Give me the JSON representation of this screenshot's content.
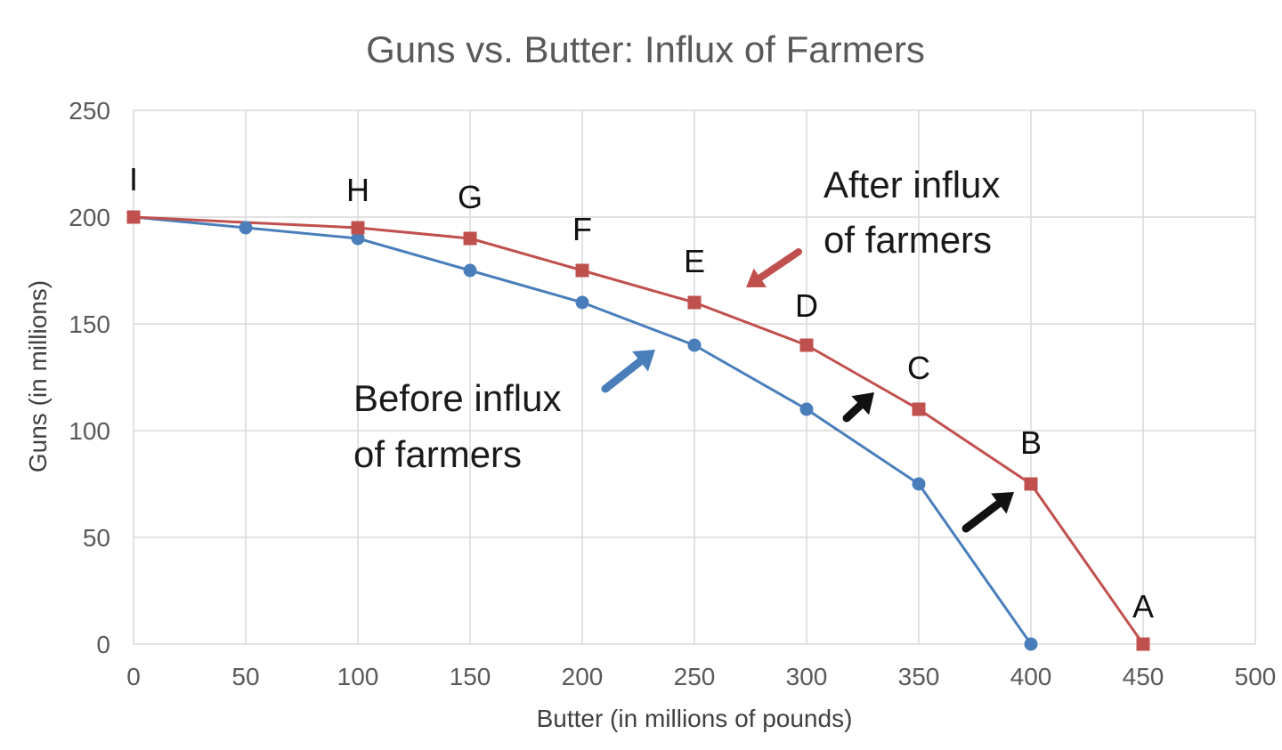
{
  "chart_data": {
    "type": "line",
    "title": "Guns vs. Butter: Influx of Farmers",
    "xlabel": "Butter (in millions of pounds)",
    "ylabel": "Guns (in millions)",
    "xlim": [
      0,
      500
    ],
    "ylim": [
      0,
      250
    ],
    "x_ticks": [
      0,
      50,
      100,
      150,
      200,
      250,
      300,
      350,
      400,
      450,
      500
    ],
    "y_ticks": [
      0,
      50,
      100,
      150,
      200,
      250
    ],
    "grid": true,
    "legend": "none",
    "series": [
      {
        "color": "#4a7ebb",
        "marker": "circle",
        "points": [
          [
            0,
            200
          ],
          [
            50,
            195
          ],
          [
            100,
            190
          ],
          [
            150,
            175
          ],
          [
            200,
            160
          ],
          [
            250,
            140
          ],
          [
            300,
            110
          ],
          [
            350,
            75
          ],
          [
            400,
            0
          ]
        ]
      },
      {
        "color": "#c0504d",
        "marker": "square",
        "points": [
          [
            0,
            200
          ],
          [
            100,
            195
          ],
          [
            150,
            190
          ],
          [
            200,
            175
          ],
          [
            250,
            160
          ],
          [
            300,
            140
          ],
          [
            350,
            110
          ],
          [
            400,
            75
          ],
          [
            450,
            0
          ]
        ]
      }
    ],
    "point_labels": [
      {
        "text": "I",
        "x": 0,
        "y": 200
      },
      {
        "text": "H",
        "x": 100,
        "y": 195
      },
      {
        "text": "G",
        "x": 150,
        "y": 190
      },
      {
        "text": "F",
        "x": 200,
        "y": 175
      },
      {
        "text": "E",
        "x": 250,
        "y": 160
      },
      {
        "text": "D",
        "x": 300,
        "y": 140
      },
      {
        "text": "C",
        "x": 350,
        "y": 110
      },
      {
        "text": "B",
        "x": 400,
        "y": 75
      },
      {
        "text": "A",
        "x": 450,
        "y": 0
      }
    ],
    "annotations": [
      {
        "lines": [
          "After influx",
          "of farmers"
        ],
        "points_to": "red-line",
        "arrow_color": "#c0504d"
      },
      {
        "lines": [
          "Before influx",
          "of farmers"
        ],
        "points_to": "blue-line",
        "arrow_color": "#4a7ebb"
      }
    ],
    "shift_arrows_color": "#111111"
  }
}
